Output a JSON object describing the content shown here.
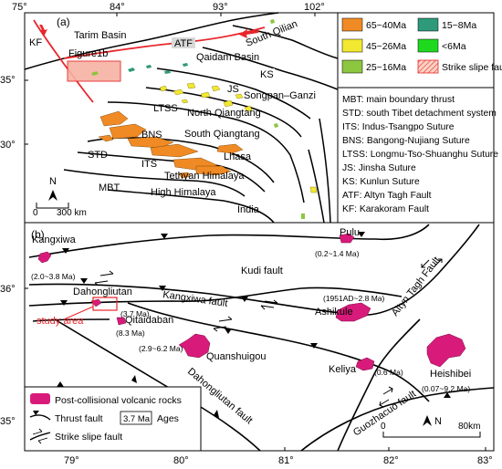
{
  "panel_a": {
    "label": "(a)",
    "lon_ticks": [
      "75°",
      "84°",
      "93°",
      "102°"
    ],
    "lat_ticks": [
      "35°",
      "30°"
    ],
    "place_labels": {
      "kf": "KF",
      "tarim": "Tarim Basin",
      "figure1b": "Figure1b",
      "atf": "ATF",
      "south_qilian": "South Qilian",
      "qaidam": "Qaidam Basin",
      "ks": "KS",
      "js": "JS",
      "songpan": "Songpan–Ganzi",
      "ltss": "LTSS",
      "north_qiangtang": "North Qiangtang",
      "bns": "BNS",
      "south_qiangtang": "South Qiangtang",
      "std": "STD",
      "its": "ITS",
      "lhasa": "Lhasa",
      "tethyan": "Tethyan Himalaya",
      "mbt": "MBT",
      "high_himalaya": "High Himalaya",
      "india": "India",
      "north": "N",
      "scale": "300 km"
    },
    "legend": [
      {
        "label": "65~40Ma",
        "color": "#f08a24"
      },
      {
        "label": "15~8Ma",
        "color": "#2e9a7a"
      },
      {
        "label": "45~26Ma",
        "color": "#f2e830"
      },
      {
        "label": "<6Ma",
        "color": "#1fd91f"
      },
      {
        "label": "25~16Ma",
        "color": "#8cc63f"
      },
      {
        "label": "Strike slipe fault",
        "color": "#e8262c"
      }
    ],
    "abbreviations": [
      "MBT: main boundary thrust",
      "STD: south Tibet detachment system",
      "ITS: Indus-Tsangpo Suture",
      "BNS: Bangong-Nujiang Suture",
      "LTSS: Longmu-Tso-Shuanghu Suture",
      "JS: Jinsha Suture",
      "KS: Kunlun Suture",
      "ATF: Altyn Tagh Fault",
      "KF: Karakoram Fault"
    ]
  },
  "panel_b": {
    "label": "(b)",
    "lon_ticks": [
      "79°",
      "80°",
      "81°",
      "82°",
      "83°"
    ],
    "lat_ticks": [
      "36°",
      "35°"
    ],
    "volcanoes": [
      {
        "name": "Kangxiwa",
        "age": "(2.0~3.8 Ma)"
      },
      {
        "name": "Pulu",
        "age": "(0.2~1.4 Ma)"
      },
      {
        "name": "Dahongliutan",
        "age": "(3.7 Ma)"
      },
      {
        "name": "Qitaidaban",
        "age": "(8.3 Ma)"
      },
      {
        "name": "Quanshuigou",
        "age": "(2.9~6.2 Ma)"
      },
      {
        "name": "Ashikule",
        "age": "(1951AD~2.8 Ma)"
      },
      {
        "name": "Keliya",
        "age": "(0.6 Ma)"
      },
      {
        "name": "Heishibei",
        "age": "(0.07~9.2 Ma)"
      }
    ],
    "faults": {
      "kudi": "Kudi fault",
      "kangxiwa": "Kangxiwa fault",
      "altyn": "Altyn Tagh Fault",
      "dahongliutan": "Dahongliutan fault",
      "guozhacuo": "Guozhacuo fault"
    },
    "study_area": "study area",
    "north": "N",
    "scale_start": "0",
    "scale_end": "80km",
    "legend": {
      "volcanic": "Post-collisional volcanic rocks",
      "thrust": "Thrust fault",
      "ages_box": "3.7 Ma",
      "ages": "Ages",
      "strike_slip": "Strike slipe fault"
    },
    "volcanic_color": "#d81b7a"
  }
}
